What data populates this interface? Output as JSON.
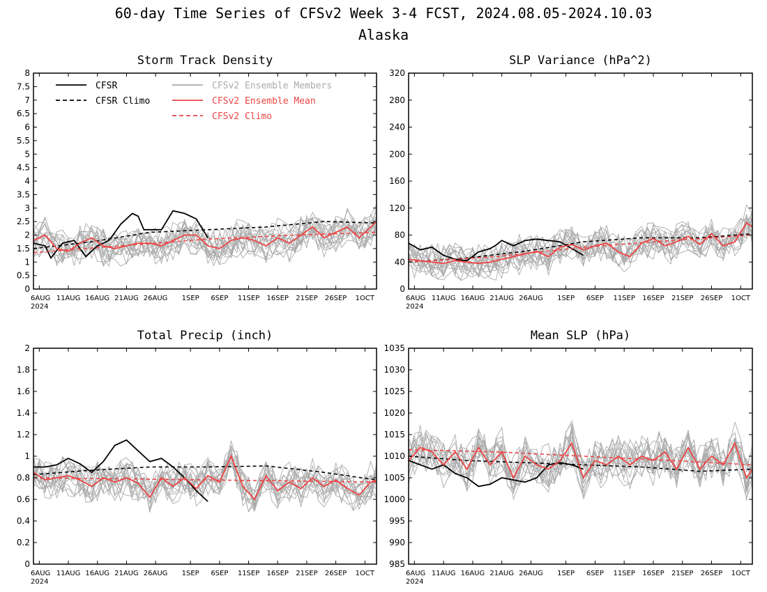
{
  "figure": {
    "title": "60-day Time Series of CFSv2 Week 3-4 FCST, 2024.08.05-2024.10.03",
    "subtitle": "Alaska"
  },
  "legend": [
    {
      "label": "CFSR",
      "color": "#000000",
      "style": "solid"
    },
    {
      "label": "CFSR Climo",
      "color": "#000000",
      "style": "dashed"
    },
    {
      "label": "CFSv2 Ensemble Members",
      "color": "#aaaaaa",
      "style": "solid"
    },
    {
      "label": "CFSv2 Ensemble Mean",
      "color": "#ee4444",
      "style": "solid"
    },
    {
      "label": "CFSv2 Climo",
      "color": "#ee4444",
      "style": "dashed"
    }
  ],
  "colors": {
    "cfsr": "#000000",
    "members": "#aaaaaa",
    "mean": "#ee4444"
  },
  "x_axis": {
    "ticks": [
      {
        "day": 1,
        "label": "6AUG",
        "sub": "2024"
      },
      {
        "day": 6,
        "label": "11AUG"
      },
      {
        "day": 11,
        "label": "16AUG"
      },
      {
        "day": 16,
        "label": "21AUG"
      },
      {
        "day": 21,
        "label": "26AUG"
      },
      {
        "day": 27,
        "label": "1SEP"
      },
      {
        "day": 32,
        "label": "6SEP"
      },
      {
        "day": 37,
        "label": "11SEP"
      },
      {
        "day": 42,
        "label": "16SEP"
      },
      {
        "day": 47,
        "label": "21SEP"
      },
      {
        "day": 52,
        "label": "26SEP"
      },
      {
        "day": 57,
        "label": "1OCT"
      }
    ]
  },
  "chart_data": [
    {
      "type": "line",
      "title": "Storm Track Density",
      "ylim": [
        0,
        8
      ],
      "yticks": [
        "0",
        "0.5",
        "1",
        "1.5",
        "2",
        "2.5",
        "3",
        "3.5",
        "4",
        "4.5",
        "5",
        "5.5",
        "6",
        "6.5",
        "7",
        "7.5",
        "8"
      ],
      "x_range": [
        0,
        59
      ],
      "series": [
        {
          "name": "CFSR",
          "x": [
            0,
            2,
            3,
            5,
            7,
            9,
            11,
            13,
            15,
            16,
            17,
            18,
            19,
            20,
            22,
            24,
            26,
            28,
            30
          ],
          "values": [
            1.7,
            1.6,
            1.15,
            1.7,
            1.8,
            1.2,
            1.6,
            1.8,
            2.4,
            2.6,
            2.8,
            2.7,
            2.2,
            2.2,
            2.2,
            2.9,
            2.8,
            2.6,
            1.9
          ]
        },
        {
          "name": "CFSR Climo",
          "x": [
            0,
            10,
            20,
            30,
            40,
            50,
            59
          ],
          "values": [
            1.5,
            1.75,
            2.1,
            2.2,
            2.3,
            2.5,
            2.45
          ]
        },
        {
          "name": "CFSv2 Ensemble Mean",
          "x": [
            0,
            2,
            4,
            6,
            8,
            10,
            12,
            14,
            16,
            18,
            20,
            22,
            24,
            26,
            28,
            30,
            32,
            34,
            36,
            38,
            40,
            42,
            44,
            46,
            48,
            50,
            52,
            54,
            56,
            58,
            59
          ],
          "values": [
            1.8,
            2.0,
            1.5,
            1.4,
            1.7,
            1.9,
            1.6,
            1.5,
            1.6,
            1.7,
            1.7,
            1.6,
            1.8,
            2.0,
            2.0,
            1.6,
            1.5,
            1.8,
            1.9,
            1.8,
            1.6,
            1.9,
            1.7,
            2.0,
            2.3,
            1.9,
            2.1,
            2.3,
            1.9,
            2.3,
            2.5
          ]
        },
        {
          "name": "CFSv2 Climo",
          "x": [
            0,
            15,
            30,
            45,
            59
          ],
          "values": [
            1.35,
            1.6,
            1.85,
            2.0,
            2.1
          ]
        }
      ]
    },
    {
      "type": "line",
      "title": "SLP Variance (hPa^2)",
      "ylim": [
        0,
        320
      ],
      "yticks": [
        "0",
        "40",
        "80",
        "120",
        "160",
        "200",
        "240",
        "280",
        "320"
      ],
      "x_range": [
        0,
        59
      ],
      "series": [
        {
          "name": "CFSR",
          "x": [
            0,
            2,
            4,
            6,
            8,
            10,
            12,
            14,
            15,
            16,
            18,
            20,
            22,
            24,
            26,
            28,
            30
          ],
          "values": [
            68,
            58,
            62,
            50,
            44,
            42,
            55,
            60,
            65,
            72,
            64,
            72,
            74,
            72,
            70,
            60,
            50
          ]
        },
        {
          "name": "CFSR Climo",
          "x": [
            0,
            10,
            20,
            30,
            40,
            50,
            59
          ],
          "values": [
            40,
            46,
            56,
            70,
            76,
            76,
            82
          ]
        },
        {
          "name": "CFSv2 Ensemble Mean",
          "x": [
            0,
            2,
            4,
            6,
            8,
            10,
            12,
            14,
            16,
            18,
            20,
            22,
            24,
            26,
            28,
            30,
            32,
            34,
            36,
            38,
            40,
            42,
            44,
            46,
            48,
            50,
            52,
            54,
            56,
            58,
            59
          ],
          "values": [
            44,
            42,
            40,
            38,
            42,
            40,
            38,
            40,
            44,
            48,
            52,
            56,
            48,
            62,
            66,
            58,
            64,
            68,
            55,
            48,
            68,
            75,
            64,
            70,
            78,
            66,
            82,
            64,
            70,
            98,
            92
          ]
        },
        {
          "name": "CFSv2 Climo",
          "x": [
            0,
            15,
            30,
            45,
            59
          ],
          "values": [
            40,
            48,
            62,
            72,
            80
          ]
        }
      ]
    },
    {
      "type": "line",
      "title": "Total Precip (inch)",
      "ylim": [
        0,
        2
      ],
      "yticks": [
        "0",
        "0.2",
        "0.4",
        "0.6",
        "0.8",
        "1",
        "1.2",
        "1.4",
        "1.6",
        "1.8",
        "2"
      ],
      "x_range": [
        0,
        59
      ],
      "series": [
        {
          "name": "CFSR",
          "x": [
            0,
            2,
            4,
            6,
            8,
            10,
            12,
            14,
            16,
            18,
            20,
            22,
            24,
            26,
            28,
            30
          ],
          "values": [
            0.9,
            0.9,
            0.92,
            0.98,
            0.93,
            0.85,
            0.95,
            1.1,
            1.15,
            1.05,
            0.95,
            0.98,
            0.9,
            0.8,
            0.68,
            0.58
          ]
        },
        {
          "name": "CFSR Climo",
          "x": [
            0,
            10,
            20,
            30,
            40,
            50,
            59
          ],
          "values": [
            0.83,
            0.87,
            0.9,
            0.9,
            0.91,
            0.85,
            0.78
          ]
        },
        {
          "name": "CFSv2 Ensemble Mean",
          "x": [
            0,
            2,
            4,
            6,
            8,
            10,
            12,
            14,
            16,
            18,
            20,
            22,
            24,
            26,
            28,
            30,
            32,
            34,
            36,
            38,
            40,
            42,
            44,
            46,
            48,
            50,
            52,
            54,
            56,
            58,
            59
          ],
          "values": [
            0.85,
            0.78,
            0.8,
            0.82,
            0.78,
            0.72,
            0.8,
            0.76,
            0.8,
            0.75,
            0.62,
            0.8,
            0.72,
            0.8,
            0.7,
            0.82,
            0.76,
            1.0,
            0.72,
            0.6,
            0.82,
            0.68,
            0.76,
            0.7,
            0.8,
            0.72,
            0.78,
            0.7,
            0.64,
            0.76,
            0.78
          ]
        },
        {
          "name": "CFSv2 Climo",
          "x": [
            0,
            15,
            30,
            45,
            59
          ],
          "values": [
            0.8,
            0.79,
            0.78,
            0.77,
            0.76
          ]
        }
      ]
    },
    {
      "type": "line",
      "title": "Mean SLP (hPa)",
      "ylim": [
        985,
        1035
      ],
      "yticks": [
        "985",
        "990",
        "995",
        "1000",
        "1005",
        "1010",
        "1015",
        "1020",
        "1025",
        "1030",
        "1035"
      ],
      "x_range": [
        0,
        59
      ],
      "series": [
        {
          "name": "CFSR",
          "x": [
            0,
            2,
            4,
            6,
            8,
            10,
            12,
            14,
            16,
            18,
            20,
            22,
            24,
            26,
            28,
            30
          ],
          "values": [
            1009,
            1008,
            1007,
            1008,
            1006,
            1005,
            1003,
            1003.5,
            1005,
            1004.5,
            1004,
            1005,
            1008,
            1008.5,
            1008,
            1007
          ]
        },
        {
          "name": "CFSR Climo",
          "x": [
            0,
            10,
            20,
            30,
            40,
            50,
            59
          ],
          "values": [
            1010,
            1009,
            1008.5,
            1008,
            1007.5,
            1006.5,
            1007
          ]
        },
        {
          "name": "CFSv2 Ensemble Mean",
          "x": [
            0,
            2,
            4,
            6,
            8,
            10,
            12,
            14,
            16,
            18,
            20,
            22,
            24,
            26,
            28,
            30,
            32,
            34,
            36,
            38,
            40,
            42,
            44,
            46,
            48,
            50,
            52,
            54,
            56,
            58,
            59
          ],
          "values": [
            1009,
            1012,
            1011,
            1008,
            1011,
            1007,
            1012,
            1008,
            1011,
            1005,
            1010,
            1008,
            1007,
            1009,
            1013,
            1005,
            1009,
            1008,
            1010,
            1008,
            1010,
            1009,
            1011,
            1007,
            1012,
            1007,
            1010,
            1008,
            1013,
            1005,
            1007
          ]
        },
        {
          "name": "CFSv2 Climo",
          "x": [
            0,
            15,
            30,
            45,
            59
          ],
          "values": [
            1011.5,
            1011,
            1010,
            1009,
            1008
          ]
        }
      ]
    }
  ]
}
